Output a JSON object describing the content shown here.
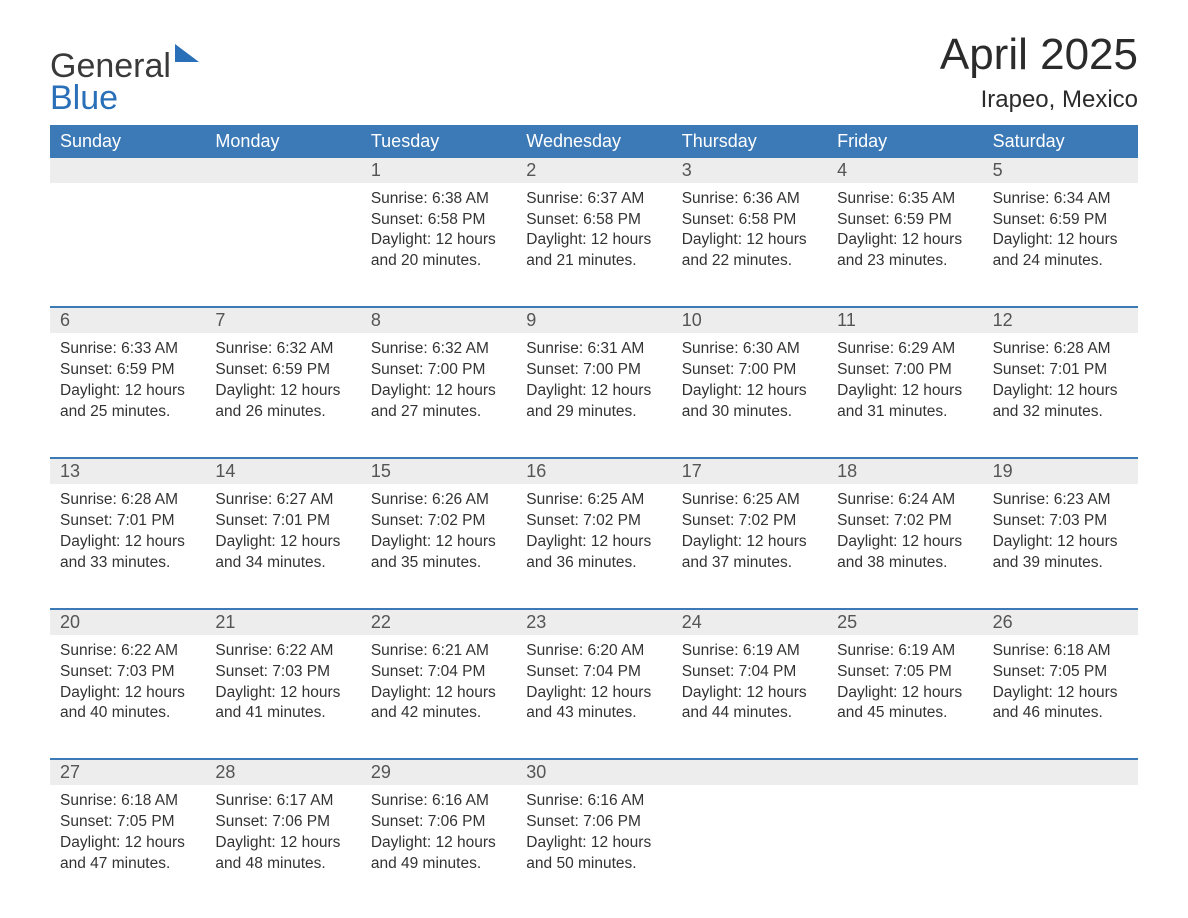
{
  "brand": {
    "line1": "General",
    "line2": "Blue"
  },
  "title": "April 2025",
  "location": "Irapeo, Mexico",
  "colors": {
    "header_bg": "#3b79b7",
    "header_text": "#ffffff",
    "date_row_bg": "#ededed",
    "week_border": "#3b79b7",
    "body_text": "#333333",
    "logo_blue": "#2a70b8",
    "background": "#ffffff"
  },
  "day_names": [
    "Sunday",
    "Monday",
    "Tuesday",
    "Wednesday",
    "Thursday",
    "Friday",
    "Saturday"
  ],
  "weeks": [
    {
      "dates": [
        "",
        "",
        "1",
        "2",
        "3",
        "4",
        "5"
      ],
      "cells": [
        null,
        null,
        {
          "sunrise": "6:38 AM",
          "sunset": "6:58 PM",
          "daylight": "12 hours and 20 minutes."
        },
        {
          "sunrise": "6:37 AM",
          "sunset": "6:58 PM",
          "daylight": "12 hours and 21 minutes."
        },
        {
          "sunrise": "6:36 AM",
          "sunset": "6:58 PM",
          "daylight": "12 hours and 22 minutes."
        },
        {
          "sunrise": "6:35 AM",
          "sunset": "6:59 PM",
          "daylight": "12 hours and 23 minutes."
        },
        {
          "sunrise": "6:34 AM",
          "sunset": "6:59 PM",
          "daylight": "12 hours and 24 minutes."
        }
      ]
    },
    {
      "dates": [
        "6",
        "7",
        "8",
        "9",
        "10",
        "11",
        "12"
      ],
      "cells": [
        {
          "sunrise": "6:33 AM",
          "sunset": "6:59 PM",
          "daylight": "12 hours and 25 minutes."
        },
        {
          "sunrise": "6:32 AM",
          "sunset": "6:59 PM",
          "daylight": "12 hours and 26 minutes."
        },
        {
          "sunrise": "6:32 AM",
          "sunset": "7:00 PM",
          "daylight": "12 hours and 27 minutes."
        },
        {
          "sunrise": "6:31 AM",
          "sunset": "7:00 PM",
          "daylight": "12 hours and 29 minutes."
        },
        {
          "sunrise": "6:30 AM",
          "sunset": "7:00 PM",
          "daylight": "12 hours and 30 minutes."
        },
        {
          "sunrise": "6:29 AM",
          "sunset": "7:00 PM",
          "daylight": "12 hours and 31 minutes."
        },
        {
          "sunrise": "6:28 AM",
          "sunset": "7:01 PM",
          "daylight": "12 hours and 32 minutes."
        }
      ]
    },
    {
      "dates": [
        "13",
        "14",
        "15",
        "16",
        "17",
        "18",
        "19"
      ],
      "cells": [
        {
          "sunrise": "6:28 AM",
          "sunset": "7:01 PM",
          "daylight": "12 hours and 33 minutes."
        },
        {
          "sunrise": "6:27 AM",
          "sunset": "7:01 PM",
          "daylight": "12 hours and 34 minutes."
        },
        {
          "sunrise": "6:26 AM",
          "sunset": "7:02 PM",
          "daylight": "12 hours and 35 minutes."
        },
        {
          "sunrise": "6:25 AM",
          "sunset": "7:02 PM",
          "daylight": "12 hours and 36 minutes."
        },
        {
          "sunrise": "6:25 AM",
          "sunset": "7:02 PM",
          "daylight": "12 hours and 37 minutes."
        },
        {
          "sunrise": "6:24 AM",
          "sunset": "7:02 PM",
          "daylight": "12 hours and 38 minutes."
        },
        {
          "sunrise": "6:23 AM",
          "sunset": "7:03 PM",
          "daylight": "12 hours and 39 minutes."
        }
      ]
    },
    {
      "dates": [
        "20",
        "21",
        "22",
        "23",
        "24",
        "25",
        "26"
      ],
      "cells": [
        {
          "sunrise": "6:22 AM",
          "sunset": "7:03 PM",
          "daylight": "12 hours and 40 minutes."
        },
        {
          "sunrise": "6:22 AM",
          "sunset": "7:03 PM",
          "daylight": "12 hours and 41 minutes."
        },
        {
          "sunrise": "6:21 AM",
          "sunset": "7:04 PM",
          "daylight": "12 hours and 42 minutes."
        },
        {
          "sunrise": "6:20 AM",
          "sunset": "7:04 PM",
          "daylight": "12 hours and 43 minutes."
        },
        {
          "sunrise": "6:19 AM",
          "sunset": "7:04 PM",
          "daylight": "12 hours and 44 minutes."
        },
        {
          "sunrise": "6:19 AM",
          "sunset": "7:05 PM",
          "daylight": "12 hours and 45 minutes."
        },
        {
          "sunrise": "6:18 AM",
          "sunset": "7:05 PM",
          "daylight": "12 hours and 46 minutes."
        }
      ]
    },
    {
      "dates": [
        "27",
        "28",
        "29",
        "30",
        "",
        "",
        ""
      ],
      "cells": [
        {
          "sunrise": "6:18 AM",
          "sunset": "7:05 PM",
          "daylight": "12 hours and 47 minutes."
        },
        {
          "sunrise": "6:17 AM",
          "sunset": "7:06 PM",
          "daylight": "12 hours and 48 minutes."
        },
        {
          "sunrise": "6:16 AM",
          "sunset": "7:06 PM",
          "daylight": "12 hours and 49 minutes."
        },
        {
          "sunrise": "6:16 AM",
          "sunset": "7:06 PM",
          "daylight": "12 hours and 50 minutes."
        },
        null,
        null,
        null
      ]
    }
  ],
  "labels": {
    "sunrise": "Sunrise:",
    "sunset": "Sunset:",
    "daylight": "Daylight:"
  }
}
